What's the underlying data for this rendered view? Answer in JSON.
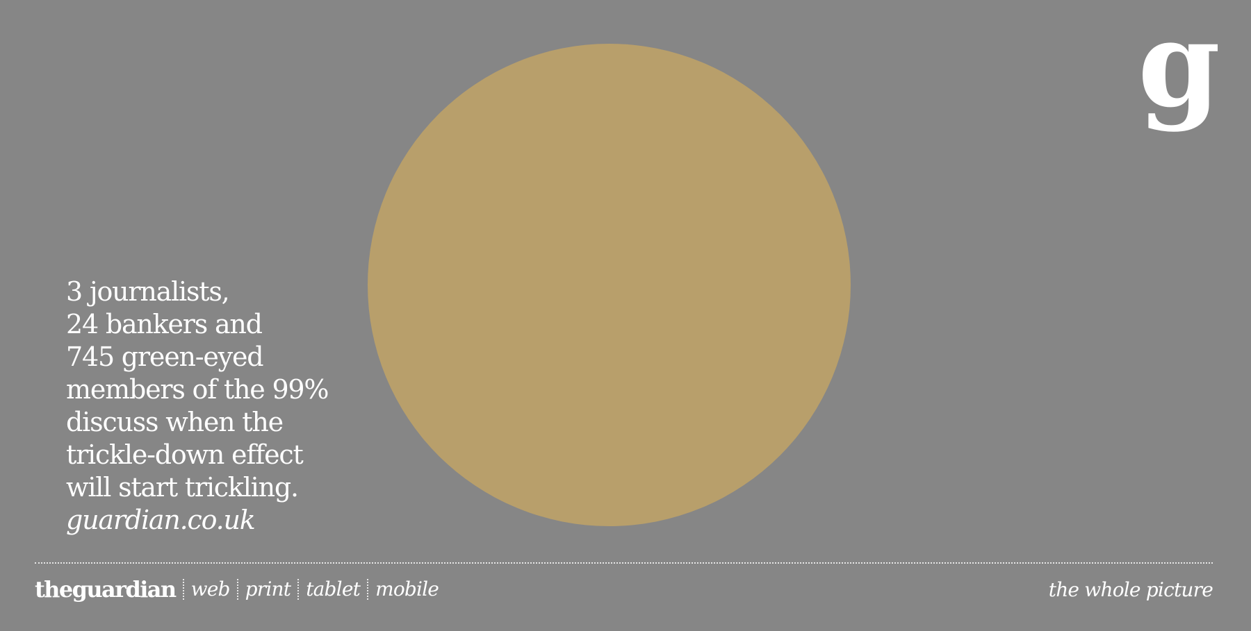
{
  "colors": {
    "background": "#868686",
    "circle": "#b89f6b",
    "text": "#ffffff"
  },
  "logo": {
    "mark": "g"
  },
  "headline": {
    "lines": [
      "3 journalists,",
      "24 bankers and",
      "745 green-eyed",
      "members of the 99%",
      "discuss when the",
      "trickle-down effect",
      "will start trickling."
    ],
    "url": "guardian.co.uk"
  },
  "footer": {
    "brand": "theguardian",
    "platforms": [
      "web",
      "print",
      "tablet",
      "mobile"
    ],
    "tagline": "the whole picture"
  }
}
